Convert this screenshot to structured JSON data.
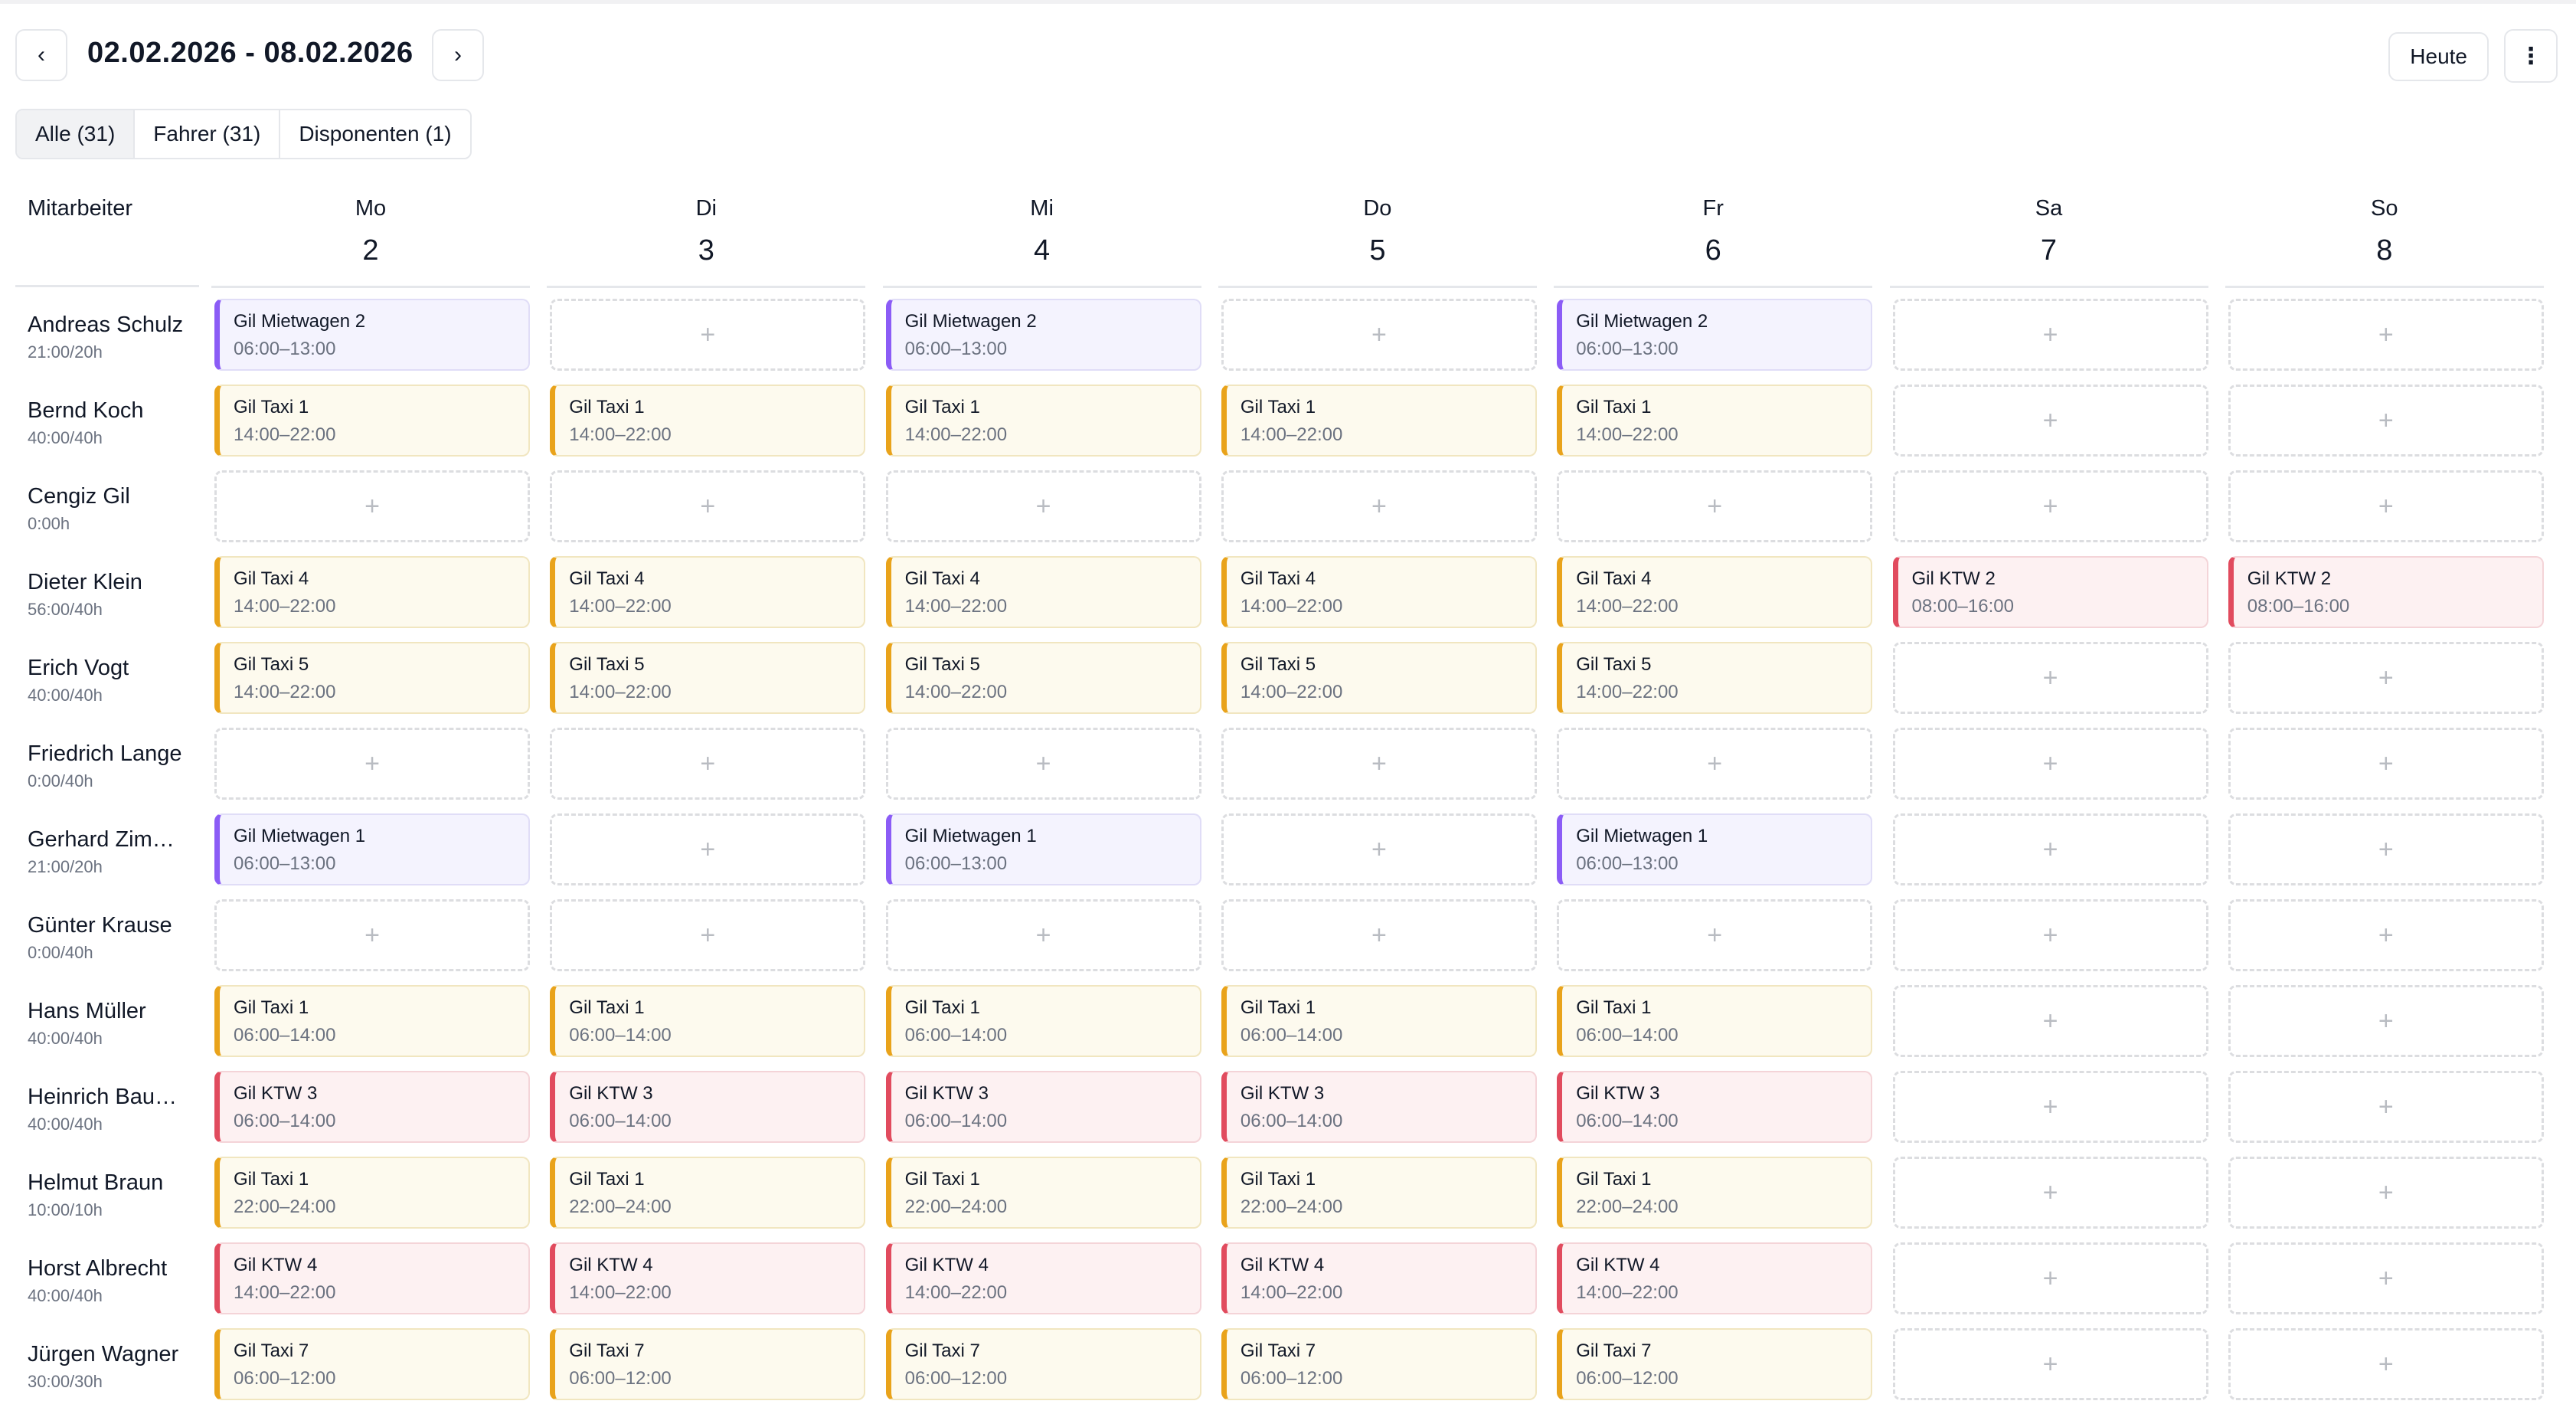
{
  "header": {
    "date_range": "02.02.2026 - 08.02.2026",
    "prev_icon": "‹",
    "next_icon": "›",
    "today_label": "Heute",
    "more_icon": "⋮"
  },
  "filters": [
    "Alle (31)",
    "Fahrer (31)",
    "Disponenten (1)"
  ],
  "active_filter": "Alle (31)",
  "grid": {
    "employee_header": "Mitarbeiter",
    "days": [
      {
        "name": "Mo",
        "num": "2"
      },
      {
        "name": "Di",
        "num": "3"
      },
      {
        "name": "Mi",
        "num": "4"
      },
      {
        "name": "Do",
        "num": "5"
      },
      {
        "name": "Fr",
        "num": "6"
      },
      {
        "name": "Sa",
        "num": "7"
      },
      {
        "name": "So",
        "num": "8"
      }
    ],
    "empty_cell_icon": "+"
  },
  "colors": {
    "mietwagen": "#8b5cf6",
    "taxi": "#e9a31b",
    "ktw": "#e14b5e"
  },
  "employees": [
    {
      "name": "Andreas Schulz",
      "hours": "21:00/20h",
      "shifts": [
        {
          "vehicle": "Gil Mietwagen 2",
          "time": "06:00–13:00",
          "type": "mietwagen"
        },
        null,
        {
          "vehicle": "Gil Mietwagen 2",
          "time": "06:00–13:00",
          "type": "mietwagen"
        },
        null,
        {
          "vehicle": "Gil Mietwagen 2",
          "time": "06:00–13:00",
          "type": "mietwagen"
        },
        null,
        null
      ]
    },
    {
      "name": "Bernd Koch",
      "hours": "40:00/40h",
      "shifts": [
        {
          "vehicle": "Gil Taxi 1",
          "time": "14:00–22:00",
          "type": "taxi"
        },
        {
          "vehicle": "Gil Taxi 1",
          "time": "14:00–22:00",
          "type": "taxi"
        },
        {
          "vehicle": "Gil Taxi 1",
          "time": "14:00–22:00",
          "type": "taxi"
        },
        {
          "vehicle": "Gil Taxi 1",
          "time": "14:00–22:00",
          "type": "taxi"
        },
        {
          "vehicle": "Gil Taxi 1",
          "time": "14:00–22:00",
          "type": "taxi"
        },
        null,
        null
      ]
    },
    {
      "name": "Cengiz Gil",
      "hours": "0:00h",
      "shifts": [
        null,
        null,
        null,
        null,
        null,
        null,
        null
      ]
    },
    {
      "name": "Dieter Klein",
      "hours": "56:00/40h",
      "shifts": [
        {
          "vehicle": "Gil Taxi 4",
          "time": "14:00–22:00",
          "type": "taxi"
        },
        {
          "vehicle": "Gil Taxi 4",
          "time": "14:00–22:00",
          "type": "taxi"
        },
        {
          "vehicle": "Gil Taxi 4",
          "time": "14:00–22:00",
          "type": "taxi"
        },
        {
          "vehicle": "Gil Taxi 4",
          "time": "14:00–22:00",
          "type": "taxi"
        },
        {
          "vehicle": "Gil Taxi 4",
          "time": "14:00–22:00",
          "type": "taxi"
        },
        {
          "vehicle": "Gil KTW 2",
          "time": "08:00–16:00",
          "type": "ktw"
        },
        {
          "vehicle": "Gil KTW 2",
          "time": "08:00–16:00",
          "type": "ktw"
        }
      ]
    },
    {
      "name": "Erich Vogt",
      "hours": "40:00/40h",
      "shifts": [
        {
          "vehicle": "Gil Taxi 5",
          "time": "14:00–22:00",
          "type": "taxi"
        },
        {
          "vehicle": "Gil Taxi 5",
          "time": "14:00–22:00",
          "type": "taxi"
        },
        {
          "vehicle": "Gil Taxi 5",
          "time": "14:00–22:00",
          "type": "taxi"
        },
        {
          "vehicle": "Gil Taxi 5",
          "time": "14:00–22:00",
          "type": "taxi"
        },
        {
          "vehicle": "Gil Taxi 5",
          "time": "14:00–22:00",
          "type": "taxi"
        },
        null,
        null
      ]
    },
    {
      "name": "Friedrich Lange",
      "hours": "0:00/40h",
      "shifts": [
        null,
        null,
        null,
        null,
        null,
        null,
        null
      ]
    },
    {
      "name": "Gerhard Zim…",
      "hours": "21:00/20h",
      "shifts": [
        {
          "vehicle": "Gil Mietwagen 1",
          "time": "06:00–13:00",
          "type": "mietwagen"
        },
        null,
        {
          "vehicle": "Gil Mietwagen 1",
          "time": "06:00–13:00",
          "type": "mietwagen"
        },
        null,
        {
          "vehicle": "Gil Mietwagen 1",
          "time": "06:00–13:00",
          "type": "mietwagen"
        },
        null,
        null
      ]
    },
    {
      "name": "Günter Krause",
      "hours": "0:00/40h",
      "shifts": [
        null,
        null,
        null,
        null,
        null,
        null,
        null
      ]
    },
    {
      "name": "Hans Müller",
      "hours": "40:00/40h",
      "shifts": [
        {
          "vehicle": "Gil Taxi 1",
          "time": "06:00–14:00",
          "type": "taxi"
        },
        {
          "vehicle": "Gil Taxi 1",
          "time": "06:00–14:00",
          "type": "taxi"
        },
        {
          "vehicle": "Gil Taxi 1",
          "time": "06:00–14:00",
          "type": "taxi"
        },
        {
          "vehicle": "Gil Taxi 1",
          "time": "06:00–14:00",
          "type": "taxi"
        },
        {
          "vehicle": "Gil Taxi 1",
          "time": "06:00–14:00",
          "type": "taxi"
        },
        null,
        null
      ]
    },
    {
      "name": "Heinrich Bau…",
      "hours": "40:00/40h",
      "shifts": [
        {
          "vehicle": "Gil KTW 3",
          "time": "06:00–14:00",
          "type": "ktw"
        },
        {
          "vehicle": "Gil KTW 3",
          "time": "06:00–14:00",
          "type": "ktw"
        },
        {
          "vehicle": "Gil KTW 3",
          "time": "06:00–14:00",
          "type": "ktw"
        },
        {
          "vehicle": "Gil KTW 3",
          "time": "06:00–14:00",
          "type": "ktw"
        },
        {
          "vehicle": "Gil KTW 3",
          "time": "06:00–14:00",
          "type": "ktw"
        },
        null,
        null
      ]
    },
    {
      "name": "Helmut Braun",
      "hours": "10:00/10h",
      "shifts": [
        {
          "vehicle": "Gil Taxi 1",
          "time": "22:00–24:00",
          "type": "taxi"
        },
        {
          "vehicle": "Gil Taxi 1",
          "time": "22:00–24:00",
          "type": "taxi"
        },
        {
          "vehicle": "Gil Taxi 1",
          "time": "22:00–24:00",
          "type": "taxi"
        },
        {
          "vehicle": "Gil Taxi 1",
          "time": "22:00–24:00",
          "type": "taxi"
        },
        {
          "vehicle": "Gil Taxi 1",
          "time": "22:00–24:00",
          "type": "taxi"
        },
        null,
        null
      ]
    },
    {
      "name": "Horst Albrecht",
      "hours": "40:00/40h",
      "shifts": [
        {
          "vehicle": "Gil KTW 4",
          "time": "14:00–22:00",
          "type": "ktw"
        },
        {
          "vehicle": "Gil KTW 4",
          "time": "14:00–22:00",
          "type": "ktw"
        },
        {
          "vehicle": "Gil KTW 4",
          "time": "14:00–22:00",
          "type": "ktw"
        },
        {
          "vehicle": "Gil KTW 4",
          "time": "14:00–22:00",
          "type": "ktw"
        },
        {
          "vehicle": "Gil KTW 4",
          "time": "14:00–22:00",
          "type": "ktw"
        },
        null,
        null
      ]
    },
    {
      "name": "Jürgen Wagner",
      "hours": "30:00/30h",
      "shifts": [
        {
          "vehicle": "Gil Taxi 7",
          "time": "06:00–12:00",
          "type": "taxi"
        },
        {
          "vehicle": "Gil Taxi 7",
          "time": "06:00–12:00",
          "type": "taxi"
        },
        {
          "vehicle": "Gil Taxi 7",
          "time": "06:00–12:00",
          "type": "taxi"
        },
        {
          "vehicle": "Gil Taxi 7",
          "time": "06:00–12:00",
          "type": "taxi"
        },
        {
          "vehicle": "Gil Taxi 7",
          "time": "06:00–12:00",
          "type": "taxi"
        },
        null,
        null
      ]
    }
  ]
}
